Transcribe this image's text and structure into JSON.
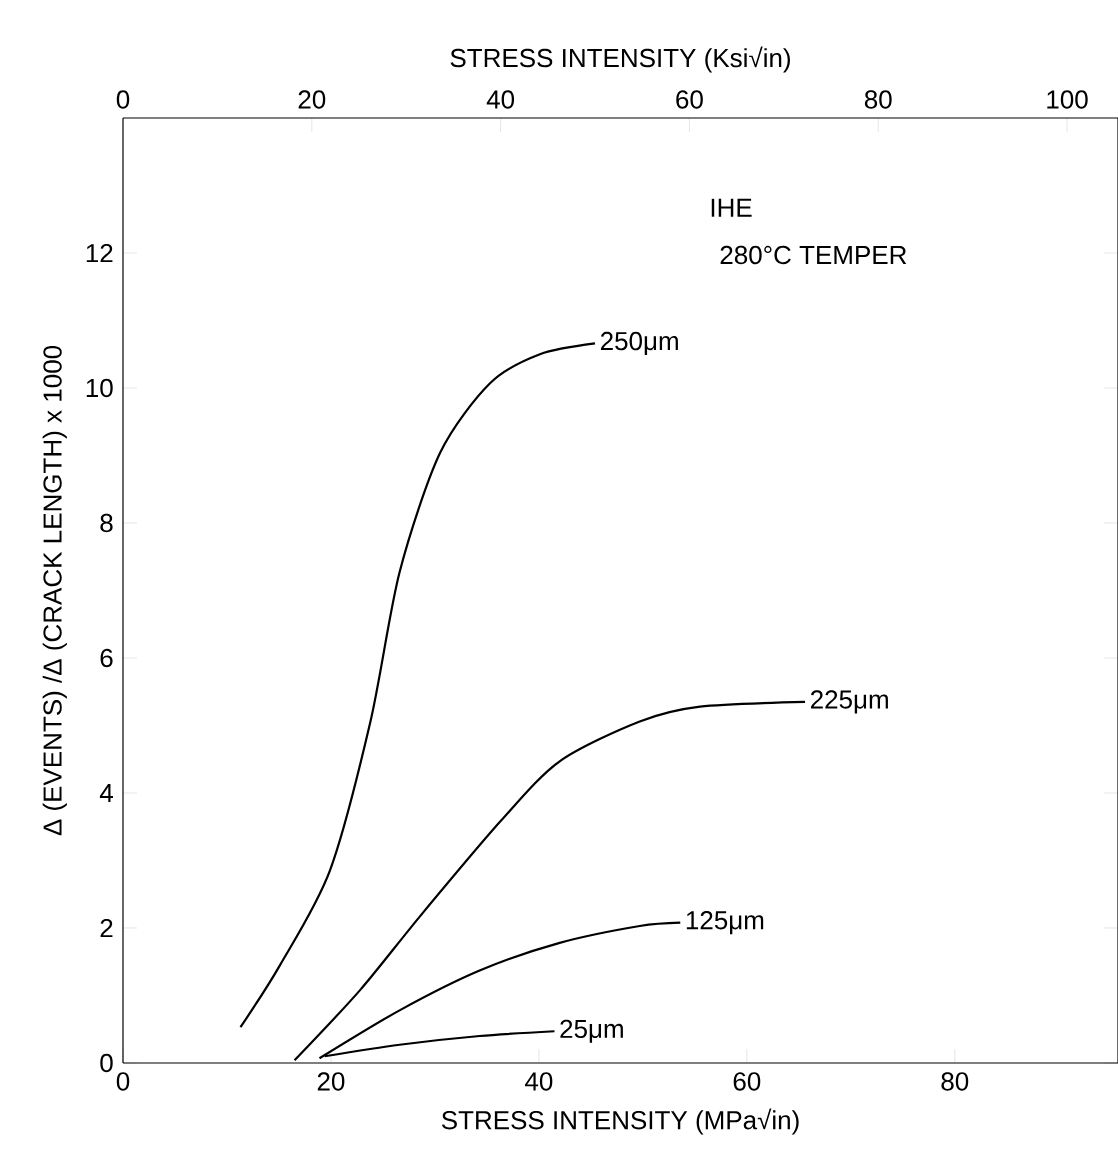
{
  "chart_data": {
    "type": "line",
    "xlabel": "STRESS INTENSITY (MPa√in)",
    "x2label": "STRESS INTENSITY (Ksi√in)",
    "ylabel": "Δ (EVENTS) /Δ (CRACK LENGTH) x 1000",
    "xlim": [
      0,
      95.7
    ],
    "xticks": [
      0,
      20,
      40,
      60,
      80
    ],
    "x2lim": [
      0,
      105.4
    ],
    "x2ticks": [
      0,
      20,
      40,
      60,
      80,
      100
    ],
    "ylim": [
      0,
      14
    ],
    "yticks": [
      0,
      2,
      4,
      6,
      8,
      10,
      12
    ],
    "grid": false,
    "line_style": "solid",
    "annotations": [
      "IHE",
      "280°C TEMPER"
    ],
    "series": [
      {
        "name": "250μm",
        "color": "#000000",
        "x": [
          11.3,
          15.1,
          19.9,
          23.8,
          26.6,
          30.5,
          35.3,
          40.1,
          45.4
        ],
        "values": [
          0.53,
          1.45,
          2.85,
          5.06,
          7.27,
          9.04,
          10.07,
          10.5,
          10.66
        ]
      },
      {
        "name": "225μm",
        "color": "#000000",
        "x": [
          16.5,
          22.8,
          28.6,
          36.3,
          42.0,
          49.7,
          55.5,
          65.6
        ],
        "values": [
          0.04,
          1.08,
          2.18,
          3.58,
          4.47,
          5.06,
          5.28,
          5.35
        ]
      },
      {
        "name": "125μm",
        "color": "#000000",
        "x": [
          18.9,
          26.6,
          34.3,
          42.0,
          49.7,
          53.6
        ],
        "values": [
          0.07,
          0.78,
          1.37,
          1.78,
          2.03,
          2.08
        ]
      },
      {
        "name": "25μm",
        "color": "#000000",
        "x": [
          19.4,
          26.6,
          34.3,
          41.5
        ],
        "values": [
          0.1,
          0.27,
          0.4,
          0.47
        ]
      }
    ]
  }
}
